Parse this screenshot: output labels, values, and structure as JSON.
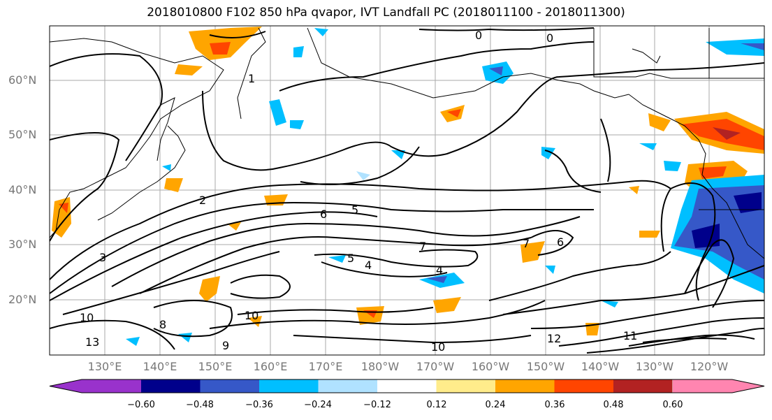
{
  "title": "2018010800 F102 850 hPa qvapor, IVT Landfall PC (2018011100 - 2018011300)",
  "lat_labels": [
    "60°N",
    "50°N",
    "40°N",
    "30°N",
    "20°N"
  ],
  "lon_labels": [
    "130°E",
    "140°E",
    "150°E",
    "160°E",
    "170°E",
    "180°W",
    "170°W",
    "160°W",
    "150°W",
    "140°W",
    "130°W",
    "120°W"
  ],
  "colorbar": {
    "colors": [
      "#9932cc",
      "#00008b",
      "#3658c8",
      "#00bfff",
      "#b0e2ff",
      "#ffffff",
      "#ffec8b",
      "#ffa500",
      "#ff4500",
      "#b22222",
      "#ff85b0"
    ],
    "tick_labels": [
      "−0.60",
      "−0.48",
      "−0.36",
      "−0.24",
      "−0.12",
      "0.12",
      "0.24",
      "0.36",
      "0.48",
      "0.60"
    ]
  },
  "contour_labels": [
    "0",
    "0",
    "1",
    "2",
    "3",
    "4",
    "4",
    "5",
    "5",
    "6",
    "6",
    "7",
    "7",
    "8",
    "9",
    "10",
    "10",
    "10",
    "11",
    "12",
    "13"
  ]
}
